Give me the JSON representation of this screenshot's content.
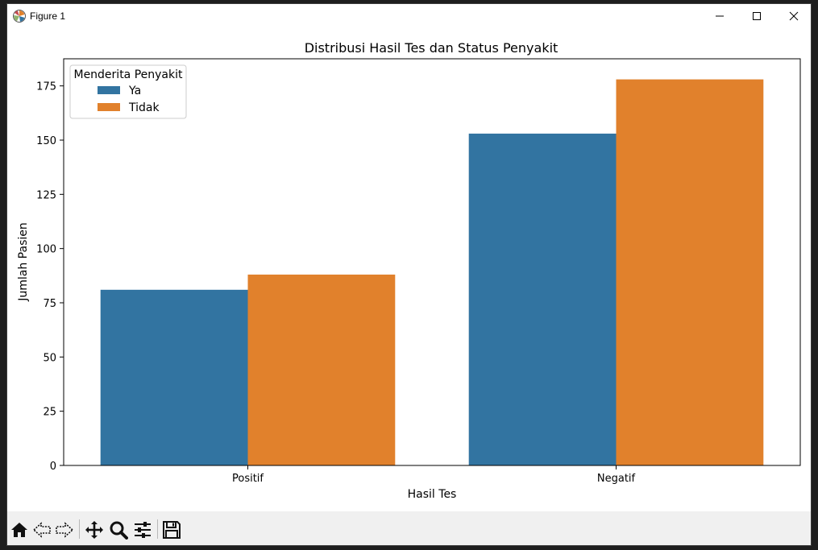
{
  "window": {
    "title": "Figure 1"
  },
  "colors": {
    "series_ya": "#3274a1",
    "series_tidak": "#e1812c",
    "toolbar_bg": "#f0f0f0"
  },
  "icons": {
    "app": "matplotlib-figure-icon",
    "minimize": "minimize-icon",
    "maximize": "maximize-icon",
    "close": "close-icon",
    "toolbar": [
      "home-icon",
      "back-arrow-icon",
      "forward-arrow-icon",
      "pan-move-icon",
      "zoom-magnifier-icon",
      "configure-subplots-icon",
      "save-icon"
    ]
  },
  "chart_data": {
    "type": "bar",
    "title": "Distribusi Hasil Tes dan Status Penyakit",
    "xlabel": "Hasil Tes",
    "ylabel": "Jumlah Pasien",
    "categories": [
      "Positif",
      "Negatif"
    ],
    "series": [
      {
        "name": "Ya",
        "values": [
          81,
          153
        ]
      },
      {
        "name": "Tidak",
        "values": [
          88,
          178
        ]
      }
    ],
    "legend_title": "Menderita Penyakit",
    "legend_position": "top-left",
    "ylim": [
      0,
      187.5
    ],
    "yticks": [
      0,
      25,
      50,
      75,
      100,
      125,
      150,
      175
    ],
    "grid": false
  }
}
